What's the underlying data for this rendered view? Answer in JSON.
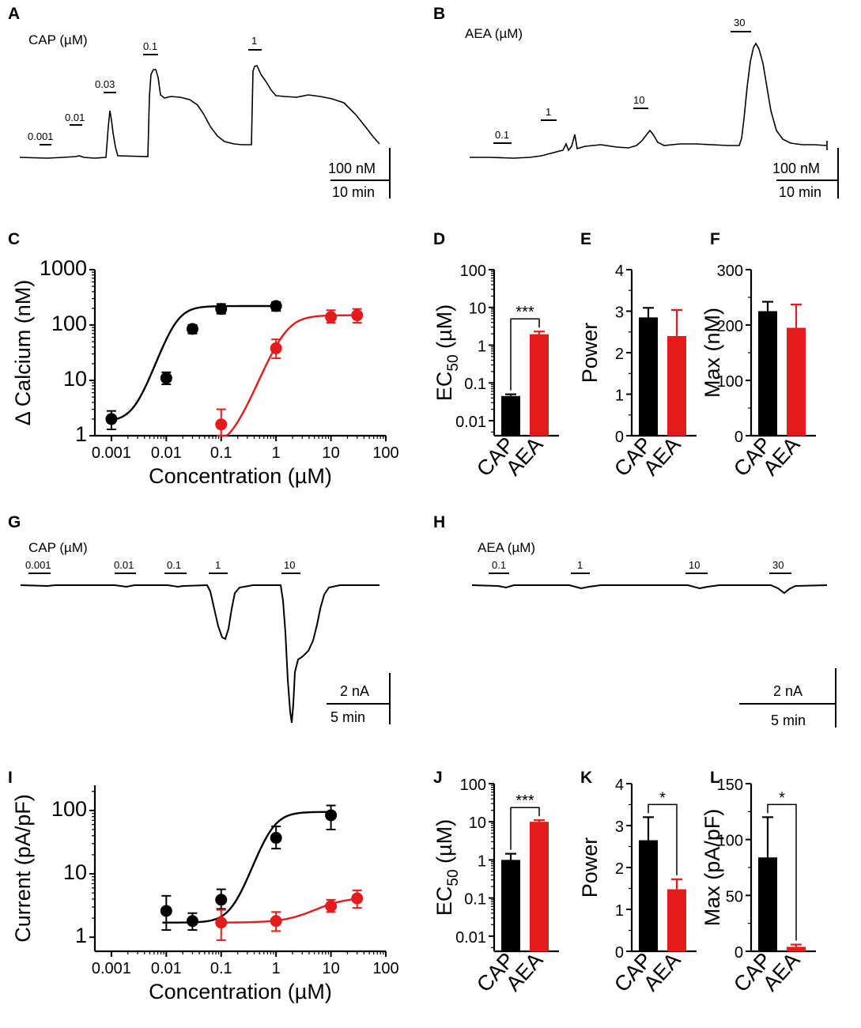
{
  "colors": {
    "cap": "#000000",
    "aea": "#e41a1c"
  },
  "panels": {
    "A": {
      "letter": "A",
      "label": "CAP (µM)",
      "scale_y": "100 nM",
      "scale_x": "10 min",
      "bars": [
        "0.001",
        "0.01",
        "0.03",
        "0.1",
        "1"
      ]
    },
    "B": {
      "letter": "B",
      "label": "AEA (µM)",
      "scale_y": "100 nM",
      "scale_x": "10 min",
      "bars": [
        "0.1",
        "1",
        "10",
        "30"
      ]
    },
    "G": {
      "letter": "G",
      "label": "CAP (µM)",
      "scale_y": "2 nA",
      "scale_x": "5 min",
      "bars": [
        "0.001",
        "0.01",
        "0.1",
        "1",
        "10"
      ]
    },
    "H": {
      "letter": "H",
      "label": "AEA (µM)",
      "scale_y": "2 nA",
      "scale_x": "5 min",
      "bars": [
        "0.1",
        "1",
        "10",
        "30"
      ]
    },
    "D": {
      "letter": "D",
      "sig": "***"
    },
    "E": {
      "letter": "E"
    },
    "F": {
      "letter": "F"
    },
    "J": {
      "letter": "J",
      "sig": "***"
    },
    "K": {
      "letter": "K",
      "sig": "*"
    },
    "L": {
      "letter": "L",
      "sig": "*"
    }
  },
  "chart_data": [
    {
      "panel": "C",
      "letter": "C",
      "type": "scatter",
      "xscale": "log",
      "yscale": "log",
      "xlabel": "Concentration (µM)",
      "ylabel": "Δ Calcium (nM)",
      "xlim": [
        0.0005,
        100
      ],
      "ylim": [
        1,
        1000
      ],
      "xticks": [
        "0.001",
        "0.01",
        "0.1",
        "1",
        "10",
        "100"
      ],
      "yticks": [
        "1",
        "10",
        "100",
        "1000"
      ],
      "series": [
        {
          "name": "CAP",
          "x": [
            0.001,
            0.01,
            0.03,
            0.1,
            1
          ],
          "y": [
            2,
            11,
            85,
            195,
            220
          ],
          "err_low": [
            1.3,
            8.5,
            70,
            160,
            180
          ],
          "err_high": [
            2.8,
            14,
            100,
            240,
            260
          ],
          "fit": {
            "bottom": 1.8,
            "top": 220,
            "ec50": 0.015,
            "hill": 2.8
          }
        },
        {
          "name": "AEA",
          "x": [
            0.1,
            1,
            10,
            30
          ],
          "y": [
            1.6,
            38,
            140,
            150
          ],
          "err_low": [
            1.0,
            25,
            110,
            110
          ],
          "err_high": [
            3.0,
            55,
            185,
            195
          ],
          "fit": {
            "bottom": 0.6,
            "top": 150,
            "ec50": 1.5,
            "hill": 2.4
          }
        }
      ]
    },
    {
      "panel": "D",
      "type": "bar",
      "yscale": "log",
      "ylim": [
        0.004,
        100
      ],
      "ylabel": "EC",
      "ylabel_sub": "50",
      "ylabel_unit": " (µM)",
      "yticks": [
        "0.01",
        "0.1",
        "1",
        "10",
        "100"
      ],
      "categories": [
        "CAP",
        "AEA"
      ],
      "values": [
        0.045,
        1.95
      ],
      "errors": [
        0.05,
        2.3
      ]
    },
    {
      "panel": "E",
      "type": "bar",
      "yscale": "linear",
      "ylim": [
        0,
        4
      ],
      "ylabel": "Power",
      "yticks": [
        "0",
        "1",
        "2",
        "3",
        "4"
      ],
      "categories": [
        "CAP",
        "AEA"
      ],
      "values": [
        2.85,
        2.4
      ],
      "errors": [
        3.08,
        3.03
      ]
    },
    {
      "panel": "F",
      "type": "bar",
      "yscale": "linear",
      "ylim": [
        0,
        300
      ],
      "ylabel": "Max (nM)",
      "yticks": [
        "0",
        "100",
        "200",
        "300"
      ],
      "categories": [
        "CAP",
        "AEA"
      ],
      "values": [
        225,
        195
      ],
      "errors": [
        242,
        237
      ]
    },
    {
      "panel": "I",
      "letter": "I",
      "type": "scatter",
      "xscale": "log",
      "yscale": "log",
      "xlabel": "Concentration (µM)",
      "ylabel": "Current (pA/pF)",
      "xlim": [
        0.0005,
        100
      ],
      "ylim": [
        0.6,
        250
      ],
      "xticks": [
        "0.001",
        "0.01",
        "0.1",
        "1",
        "10",
        "100"
      ],
      "yticks": [
        "1",
        "10",
        "100"
      ],
      "series": [
        {
          "name": "CAP",
          "x": [
            0.01,
            0.03,
            0.1,
            1,
            10
          ],
          "y": [
            2.6,
            1.8,
            3.9,
            37,
            84
          ],
          "err_low": [
            1.3,
            1.3,
            2.8,
            25,
            50
          ],
          "err_high": [
            4.5,
            2.4,
            5.7,
            56,
            120
          ],
          "fit": {
            "bottom": 1.7,
            "top": 95,
            "ec50": 0.8,
            "hill": 2.6
          }
        },
        {
          "name": "AEA",
          "x": [
            0.1,
            1,
            10,
            30
          ],
          "y": [
            1.7,
            1.8,
            3.1,
            4.1
          ],
          "err_low": [
            0.9,
            1.25,
            2.5,
            2.9
          ],
          "err_high": [
            2.7,
            2.5,
            3.9,
            5.5
          ],
          "fit": {
            "bottom": 1.7,
            "top": 4.3,
            "ec50": 7.0,
            "hill": 1.5
          }
        }
      ]
    },
    {
      "panel": "J",
      "type": "bar",
      "yscale": "log",
      "ylim": [
        0.004,
        100
      ],
      "ylabel": "EC",
      "ylabel_sub": "50",
      "ylabel_unit": " (µM)",
      "yticks": [
        "0.01",
        "0.1",
        "1",
        "10",
        "100"
      ],
      "categories": [
        "CAP",
        "AEA"
      ],
      "values": [
        1.0,
        10.0
      ],
      "errors": [
        1.45,
        11.0
      ]
    },
    {
      "panel": "K",
      "type": "bar",
      "yscale": "linear",
      "ylim": [
        0,
        4
      ],
      "ylabel": "Power",
      "yticks": [
        "0",
        "1",
        "2",
        "3",
        "4"
      ],
      "categories": [
        "CAP",
        "AEA"
      ],
      "values": [
        2.65,
        1.48
      ],
      "errors": [
        3.2,
        1.72
      ]
    },
    {
      "panel": "L",
      "type": "bar",
      "yscale": "linear",
      "ylim": [
        0,
        150
      ],
      "ylabel": "Max (pA/pF)",
      "yticks": [
        "0",
        "50",
        "100",
        "150"
      ],
      "categories": [
        "CAP",
        "AEA"
      ],
      "values": [
        84,
        4
      ],
      "errors": [
        120,
        6
      ]
    }
  ]
}
